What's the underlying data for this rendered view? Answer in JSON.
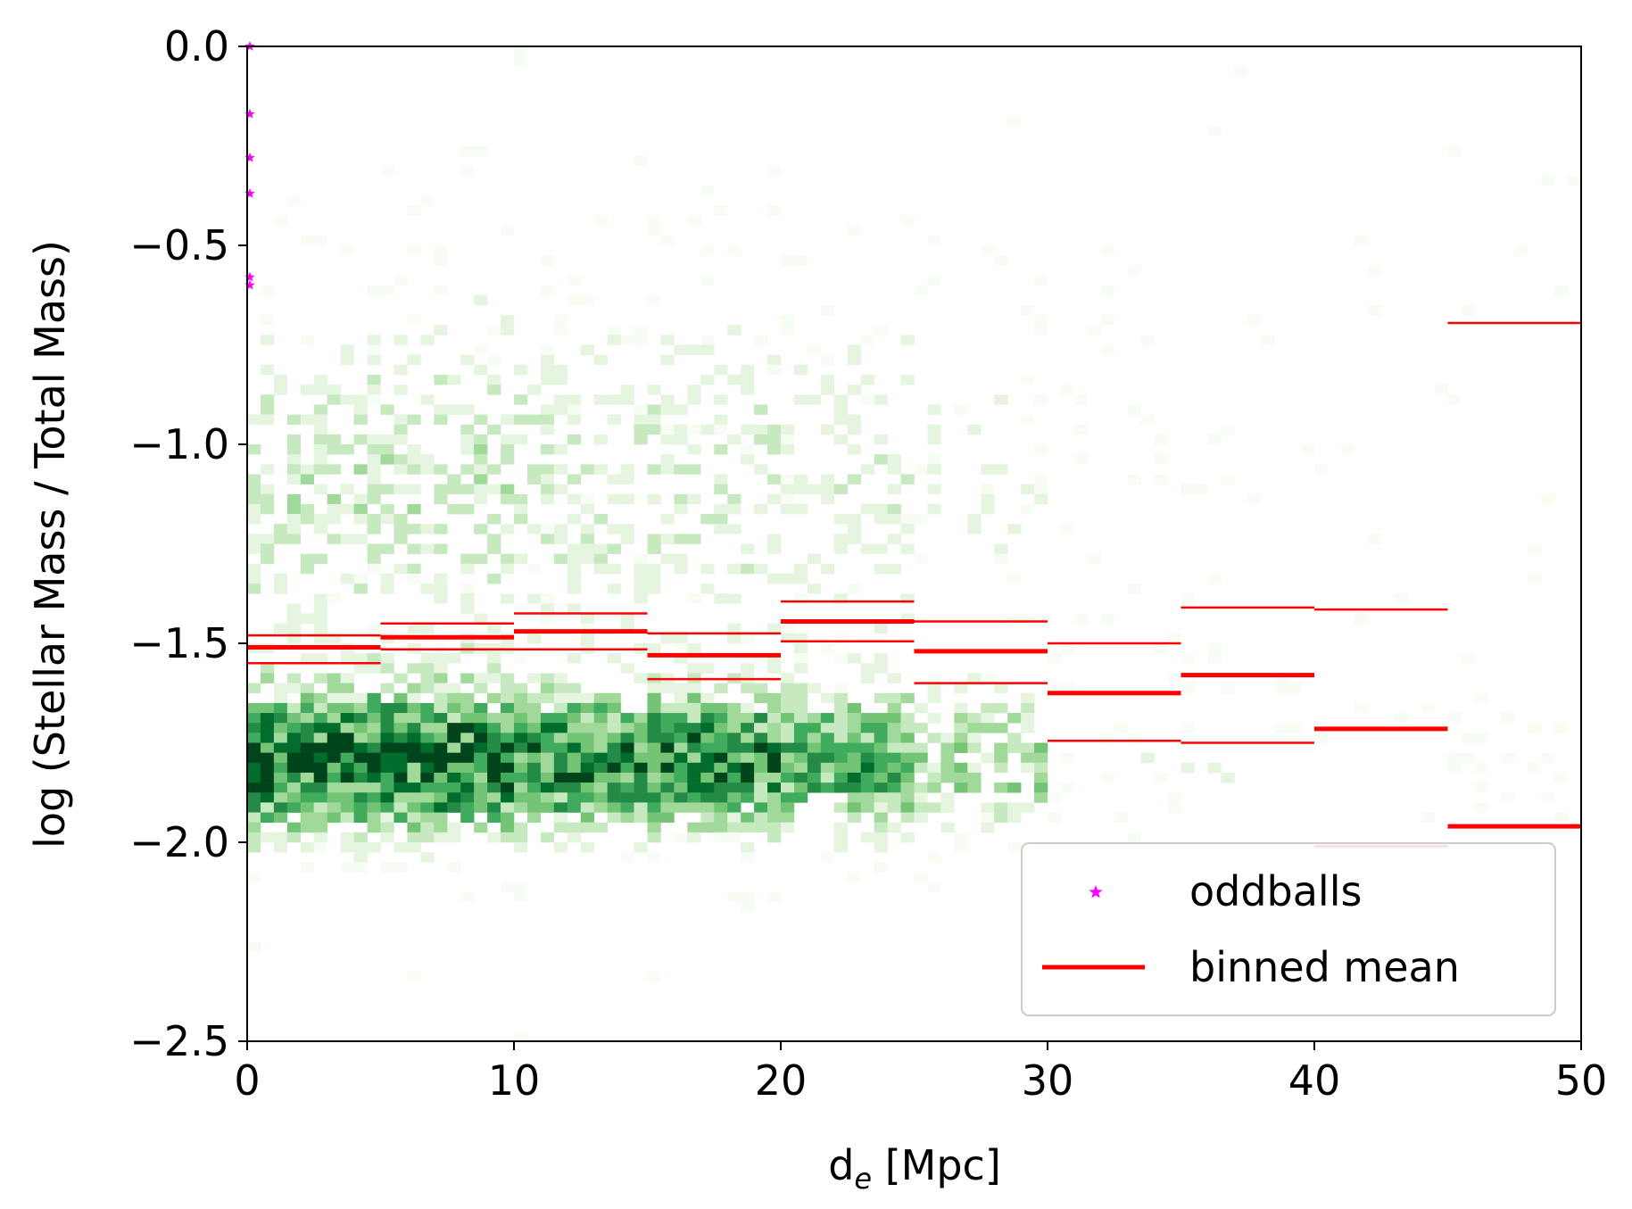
{
  "chart_data": {
    "type": "heatmap",
    "title": "",
    "xlabel": "d",
    "xlabel_subscript": "e",
    "xlabel_unit": " [Mpc]",
    "ylabel": "log (Stellar Mass / Total Mass)",
    "xlim": [
      0,
      50
    ],
    "ylim": [
      -2.5,
      0.0
    ],
    "xticks": [
      0,
      10,
      20,
      30,
      40,
      50
    ],
    "xtick_labels": [
      "0",
      "10",
      "20",
      "30",
      "40",
      "50"
    ],
    "yticks": [
      0.0,
      -0.5,
      -1.0,
      -1.5,
      -2.0,
      -2.5
    ],
    "ytick_labels": [
      "0.0",
      "−0.5",
      "−1.0",
      "−1.5",
      "−2.0",
      "−2.5"
    ],
    "grid": false,
    "legend_position": "lower-right",
    "colormap": "Greens",
    "histogram": {
      "x_bins": 100,
      "y_bins": 100,
      "description_density": [
        {
          "x_range": [
            0,
            10
          ],
          "y_range": [
            -2.0,
            -1.6
          ],
          "level": "high"
        },
        {
          "x_range": [
            10,
            25
          ],
          "y_range": [
            -2.0,
            -1.6
          ],
          "level": "medium"
        },
        {
          "x_range": [
            25,
            30
          ],
          "y_range": [
            -2.0,
            -1.6
          ],
          "level": "low"
        },
        {
          "x_range": [
            0,
            30
          ],
          "y_range": [
            -1.6,
            -0.4
          ],
          "level": "low"
        },
        {
          "x_range": [
            30,
            50
          ],
          "y_range": [
            -2.1,
            -0.7
          ],
          "level": "sparse"
        }
      ]
    },
    "series": [
      {
        "name": "oddballs",
        "type": "scatter",
        "marker": "star",
        "color": "#ff00ff",
        "x": [
          0.1,
          0.1,
          0.1,
          0.1,
          0.1,
          0.1
        ],
        "y": [
          0.0,
          -0.17,
          -0.28,
          -0.37,
          -0.58,
          -0.6
        ]
      },
      {
        "name": "binned mean",
        "type": "step",
        "color": "#ff0000",
        "bins": [
          [
            0,
            5
          ],
          [
            5,
            10
          ],
          [
            10,
            15
          ],
          [
            15,
            20
          ],
          [
            20,
            25
          ],
          [
            25,
            30
          ],
          [
            30,
            35
          ],
          [
            35,
            40
          ],
          [
            40,
            45
          ],
          [
            45,
            50
          ]
        ],
        "mean": [
          -1.51,
          -1.485,
          -1.47,
          -1.53,
          -1.445,
          -1.52,
          -1.625,
          -1.58,
          -1.715,
          -1.96
        ],
        "upper": [
          -1.48,
          -1.45,
          -1.425,
          -1.475,
          -1.395,
          -1.445,
          -1.5,
          -1.41,
          -1.415,
          -0.695
        ],
        "lower": [
          -1.55,
          -1.515,
          -1.515,
          -1.59,
          -1.495,
          -1.6,
          -1.745,
          -1.75,
          -2.01,
          null
        ]
      }
    ],
    "legend": [
      {
        "label": "oddballs",
        "symbol": "star",
        "color": "#ff00ff"
      },
      {
        "label": "binned mean",
        "symbol": "line",
        "color": "#ff0000"
      }
    ]
  }
}
